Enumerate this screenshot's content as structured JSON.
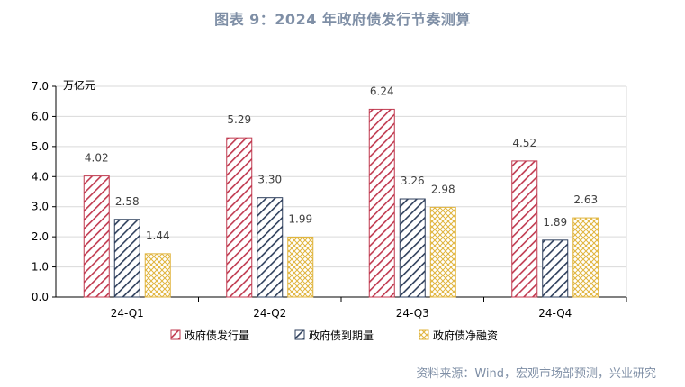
{
  "title": "图表 9：2024 年政府债发行节奏测算",
  "source": "资料来源：Wind，宏观市场部预测，兴业研究",
  "chart_data": {
    "type": "bar",
    "title": "图表 9：2024 年政府债发行节奏测算",
    "ylabel": "万亿元",
    "xlabel": "",
    "ylim": [
      0,
      7
    ],
    "yticks": [
      "0.0",
      "1.0",
      "2.0",
      "3.0",
      "4.0",
      "5.0",
      "6.0",
      "7.0"
    ],
    "grid": true,
    "legend_position": "bottom",
    "categories": [
      "24-Q1",
      "24-Q2",
      "24-Q3",
      "24-Q4"
    ],
    "series": [
      {
        "name": "政府债发行量",
        "values": [
          4.02,
          5.29,
          6.24,
          4.52
        ],
        "labels": [
          "4.02",
          "5.29",
          "6.24",
          "4.52"
        ],
        "color": "#c0394f",
        "pattern": "diagonal"
      },
      {
        "name": "政府债到期量",
        "values": [
          2.58,
          3.3,
          3.26,
          1.89
        ],
        "labels": [
          "2.58",
          "3.30",
          "3.26",
          "1.89"
        ],
        "color": "#2e3f5c",
        "pattern": "diagonal"
      },
      {
        "name": "政府债净融资",
        "values": [
          1.44,
          1.99,
          2.98,
          2.63
        ],
        "labels": [
          "1.44",
          "1.99",
          "2.98",
          "2.63"
        ],
        "color": "#e0b43c",
        "pattern": "crosshatch"
      }
    ]
  }
}
